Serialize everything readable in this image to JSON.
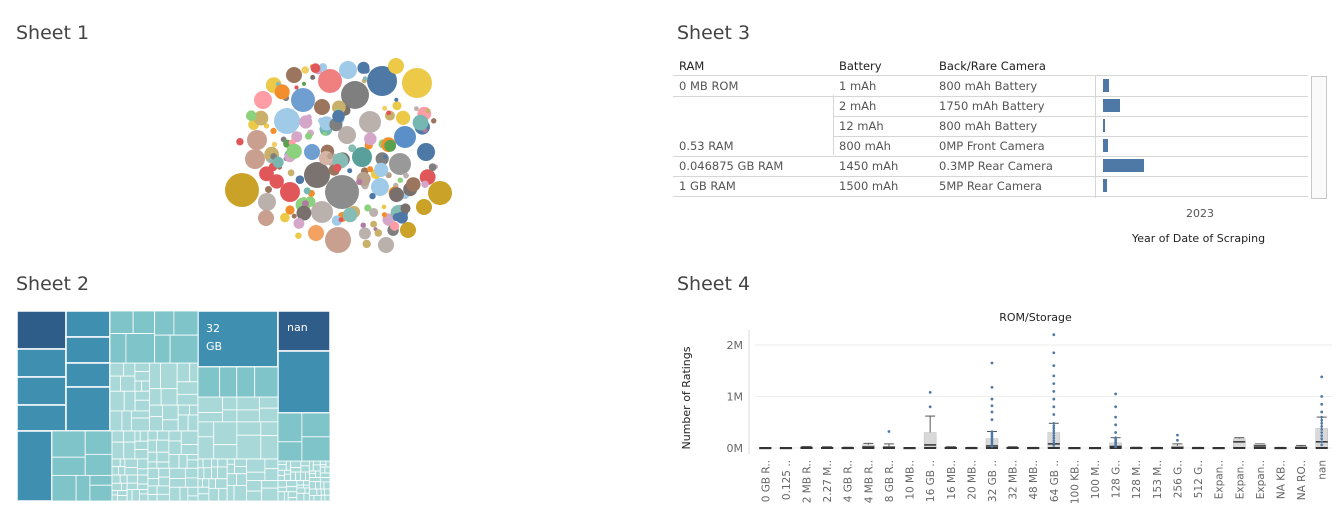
{
  "sheets": {
    "sheet1_title": "Sheet 1",
    "sheet2_title": "Sheet 2",
    "sheet3_title": "Sheet 3",
    "sheet4_title": "Sheet 4"
  },
  "colors": {
    "accent": "#4e79a7",
    "treemap_dark": "#2f5d8a",
    "treemap_mid": "#3f8fb0",
    "treemap_light": "#7fc4c9",
    "treemap_lightest": "#a9d8d8"
  },
  "sheet2": {
    "labels": [
      "32\nGB",
      "nan"
    ]
  },
  "sheet3": {
    "headers": {
      "ram": "RAM",
      "battery": "Battery",
      "camera": "Back/Rare Camera"
    },
    "rows": [
      {
        "ram": "0 MB ROM",
        "battery": "1 mAh",
        "camera": "800 mAh Battery",
        "value": 0.12
      },
      {
        "ram": "",
        "battery": "2 mAh",
        "camera": "1750 mAh Battery",
        "value": 0.32
      },
      {
        "ram": "",
        "battery": "12 mAh",
        "camera": "800 mAh Battery",
        "value": 0.04
      },
      {
        "ram": "0.53 RAM",
        "battery": "800 mAh",
        "camera": "0MP Front Camera",
        "value": 0.1
      },
      {
        "ram": "0.046875 GB RAM",
        "battery": "1450 mAh",
        "camera": "0.3MP Rear Camera",
        "value": 0.78
      },
      {
        "ram": "1 GB RAM",
        "battery": "1500 mAh",
        "camera": "5MP Rear Camera",
        "value": 0.08
      }
    ],
    "axis_tick": "2023",
    "axis_title": "Year of Date of Scraping"
  },
  "chart_data": [
    {
      "type": "bubble",
      "sheet": "Sheet 1",
      "title": "",
      "note": "packed bubble chart, unlabeled"
    },
    {
      "type": "treemap",
      "sheet": "Sheet 2",
      "labels": [
        "32 GB",
        "nan"
      ]
    },
    {
      "type": "bar",
      "sheet": "Sheet 3",
      "xlabel": "Year of Date of Scraping",
      "x_ticks": [
        "2023"
      ],
      "categories": [
        "0 MB ROM / 1 mAh / 800 mAh Battery",
        "0 MB ROM / 2 mAh / 1750 mAh Battery",
        "0 MB ROM / 12 mAh / 800 mAh Battery",
        "0.53 RAM / 800 mAh / 0MP Front Camera",
        "0.046875 GB RAM / 1450 mAh / 0.3MP Rear Camera",
        "1 GB RAM / 1500 mAh / 5MP Rear Camera"
      ],
      "values": [
        0.12,
        0.32,
        0.04,
        0.1,
        0.78,
        0.08
      ]
    },
    {
      "type": "boxplot",
      "sheet": "Sheet 4",
      "title": "ROM/Storage",
      "ylabel": "Number of Ratings",
      "y_ticks": [
        "0M",
        "1M",
        "2M"
      ],
      "ylim": [
        0,
        2200000
      ],
      "categories": [
        "0 GB R..",
        "0.125 ..",
        "2 MB R..",
        "2.27 M..",
        "4 GB R..",
        "4 MB R..",
        "8 GB R..",
        "10 MB..",
        "16 GB ..",
        "16 MB..",
        "20 MB..",
        "32 GB ..",
        "32 MB..",
        "48 MB..",
        "64 GB ..",
        "100 KB..",
        "100 M..",
        "128 G..",
        "128 M..",
        "153 M..",
        "256 G..",
        "512 G..",
        "Expan..",
        "Expan..",
        "Expan..",
        "NA KB..",
        "NA RO..",
        "nan"
      ],
      "boxes": [
        {
          "q1": 0,
          "median": 0,
          "q3": 5000,
          "whisker_hi": 10000,
          "outliers": []
        },
        {
          "q1": 0,
          "median": 0,
          "q3": 4000,
          "whisker_hi": 8000,
          "outliers": []
        },
        {
          "q1": 0,
          "median": 10000,
          "q3": 20000,
          "whisker_hi": 30000,
          "outliers": []
        },
        {
          "q1": 0,
          "median": 5000,
          "q3": 15000,
          "whisker_hi": 25000,
          "outliers": []
        },
        {
          "q1": 0,
          "median": 3000,
          "q3": 8000,
          "whisker_hi": 15000,
          "outliers": []
        },
        {
          "q1": 0,
          "median": 20000,
          "q3": 60000,
          "whisker_hi": 90000,
          "outliers": []
        },
        {
          "q1": 0,
          "median": 15000,
          "q3": 30000,
          "whisker_hi": 80000,
          "outliers": [
            320000
          ]
        },
        {
          "q1": 0,
          "median": 2000,
          "q3": 5000,
          "whisker_hi": 10000,
          "outliers": []
        },
        {
          "q1": 0,
          "median": 60000,
          "q3": 300000,
          "whisker_hi": 620000,
          "outliers": [
            800000,
            1080000
          ]
        },
        {
          "q1": 0,
          "median": 5000,
          "q3": 15000,
          "whisker_hi": 25000,
          "outliers": []
        },
        {
          "q1": 0,
          "median": 2000,
          "q3": 6000,
          "whisker_hi": 12000,
          "outliers": []
        },
        {
          "q1": 0,
          "median": 40000,
          "q3": 180000,
          "whisker_hi": 320000,
          "outliers": [
            550000,
            700000,
            820000,
            950000,
            1180000,
            1650000
          ]
        },
        {
          "q1": 0,
          "median": 5000,
          "q3": 15000,
          "whisker_hi": 25000,
          "outliers": []
        },
        {
          "q1": 0,
          "median": 2000,
          "q3": 6000,
          "whisker_hi": 12000,
          "outliers": []
        },
        {
          "q1": 0,
          "median": 80000,
          "q3": 300000,
          "whisker_hi": 480000,
          "outliers": [
            650000,
            800000,
            950000,
            1100000,
            1250000,
            1400000,
            1600000,
            1850000,
            2200000
          ]
        },
        {
          "q1": 0,
          "median": 1000,
          "q3": 3000,
          "whisker_hi": 6000,
          "outliers": []
        },
        {
          "q1": 0,
          "median": 1000,
          "q3": 3000,
          "whisker_hi": 6000,
          "outliers": []
        },
        {
          "q1": 0,
          "median": 30000,
          "q3": 100000,
          "whisker_hi": 200000,
          "outliers": [
            300000,
            450000,
            600000,
            800000,
            1050000
          ]
        },
        {
          "q1": 0,
          "median": 3000,
          "q3": 8000,
          "whisker_hi": 15000,
          "outliers": []
        },
        {
          "q1": 0,
          "median": 2000,
          "q3": 6000,
          "whisker_hi": 12000,
          "outliers": []
        },
        {
          "q1": 0,
          "median": 10000,
          "q3": 40000,
          "whisker_hi": 80000,
          "outliers": [
            150000,
            250000
          ]
        },
        {
          "q1": 0,
          "median": 2000,
          "q3": 6000,
          "whisker_hi": 12000,
          "outliers": []
        },
        {
          "q1": 0,
          "median": 1000,
          "q3": 4000,
          "whisker_hi": 8000,
          "outliers": []
        },
        {
          "q1": 0,
          "median": 120000,
          "q3": 180000,
          "whisker_hi": 200000,
          "outliers": []
        },
        {
          "q1": 0,
          "median": 40000,
          "q3": 70000,
          "whisker_hi": 80000,
          "outliers": []
        },
        {
          "q1": 0,
          "median": 2000,
          "q3": 6000,
          "whisker_hi": 12000,
          "outliers": []
        },
        {
          "q1": 0,
          "median": 10000,
          "q3": 30000,
          "whisker_hi": 50000,
          "outliers": []
        },
        {
          "q1": 0,
          "median": 120000,
          "q3": 380000,
          "whisker_hi": 600000,
          "outliers": [
            700000,
            850000,
            1000000,
            1380000
          ]
        }
      ]
    }
  ]
}
